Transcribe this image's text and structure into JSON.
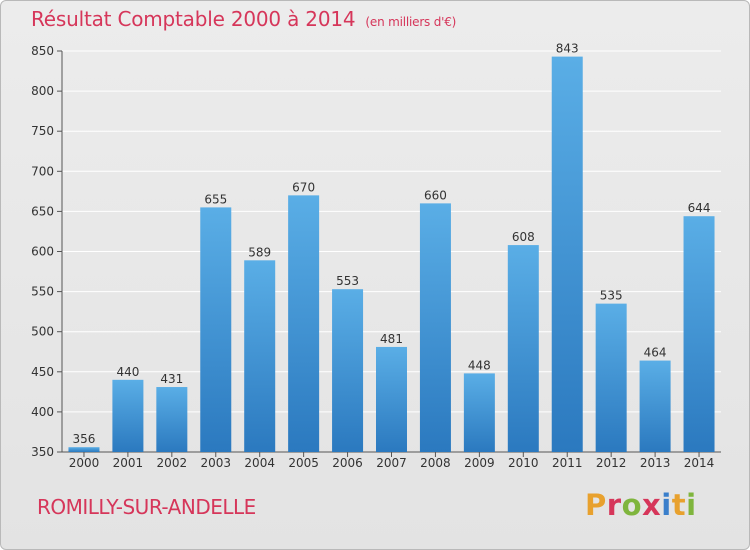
{
  "chart_data": {
    "type": "bar",
    "title": "Résultat Comptable 2000 à 2014",
    "subtitle": "(en milliers d'€)",
    "categories": [
      "2000",
      "2001",
      "2002",
      "2003",
      "2004",
      "2005",
      "2006",
      "2007",
      "2008",
      "2009",
      "2010",
      "2011",
      "2012",
      "2013",
      "2014"
    ],
    "values": [
      356,
      440,
      431,
      655,
      589,
      670,
      553,
      481,
      660,
      448,
      608,
      843,
      535,
      464,
      644
    ],
    "ylim": [
      350,
      850
    ],
    "yticks": [
      350,
      400,
      450,
      500,
      550,
      600,
      650,
      700,
      750,
      800,
      850
    ],
    "grid": true,
    "bar_color": "#3f95d8"
  },
  "footer": {
    "town": "ROMILLY-SUR-ANDELLE",
    "logo": [
      "P",
      "r",
      "o",
      "x",
      "i",
      "t",
      "i"
    ]
  }
}
